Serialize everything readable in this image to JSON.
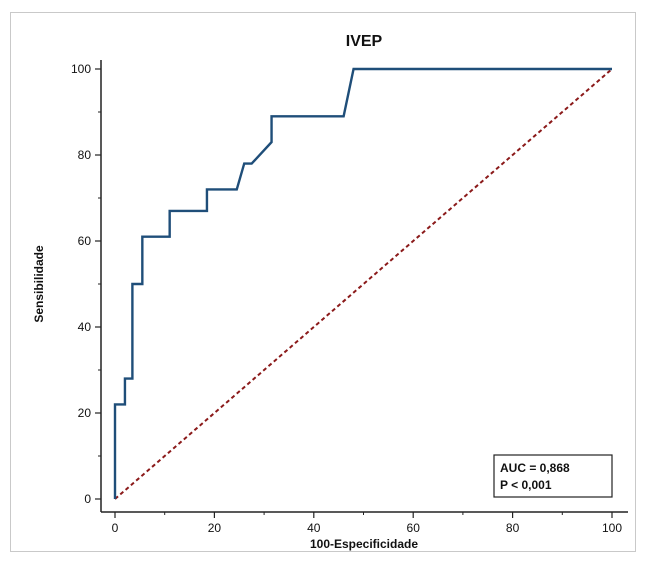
{
  "chart_data": {
    "type": "line",
    "title": "IVEP",
    "xlabel": "100-Especificidade",
    "ylabel": "Sensibilidade",
    "xlim": [
      0,
      100
    ],
    "ylim": [
      0,
      100
    ],
    "xticks": [
      0,
      20,
      40,
      60,
      80,
      100
    ],
    "yticks": [
      0,
      20,
      40,
      60,
      80,
      100
    ],
    "series": [
      {
        "style": "step-solid",
        "color": "#1f4e79",
        "points": [
          [
            0,
            0
          ],
          [
            0,
            22
          ],
          [
            2,
            22
          ],
          [
            2,
            28
          ],
          [
            3.5,
            28
          ],
          [
            3.5,
            50
          ],
          [
            5.5,
            50
          ],
          [
            5.5,
            61
          ],
          [
            11,
            61
          ],
          [
            11,
            67
          ],
          [
            18.5,
            67
          ],
          [
            18.5,
            72
          ],
          [
            24.5,
            72
          ],
          [
            26,
            78
          ],
          [
            27.5,
            78
          ],
          [
            31.5,
            83
          ],
          [
            31.5,
            89
          ],
          [
            46,
            89
          ],
          [
            48,
            100
          ],
          [
            100,
            100
          ]
        ]
      },
      {
        "style": "dashed",
        "color": "#8b1a1a",
        "points": [
          [
            0,
            0
          ],
          [
            100,
            100
          ]
        ]
      }
    ],
    "annotation": [
      "AUC = 0,868",
      "P < 0,001"
    ],
    "grid": false
  }
}
